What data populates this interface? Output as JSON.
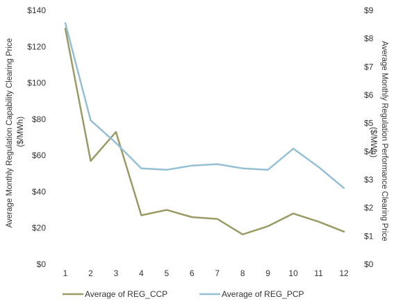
{
  "chart_data": {
    "type": "line",
    "categories": [
      "1",
      "2",
      "3",
      "4",
      "5",
      "6",
      "7",
      "8",
      "9",
      "10",
      "11",
      "12"
    ],
    "title": "",
    "xlabel": "",
    "y_left": {
      "label_line1": "Average Monthly Regulation Capability Clearing Price",
      "label_line2": "($/MWh)",
      "ticks": [
        "$0",
        "$20",
        "$40",
        "$60",
        "$80",
        "$100",
        "$120",
        "$140"
      ],
      "ylim": [
        0,
        140
      ]
    },
    "y_right": {
      "label_line1": "Average Monthly Regulation Performance Clearing Price",
      "label_line2": "($/MWh)",
      "ticks": [
        "$0",
        "$1",
        "$2",
        "$3",
        "$4",
        "$5",
        "$6",
        "$7",
        "$8",
        "$9"
      ],
      "ylim": [
        0,
        9
      ]
    },
    "series": [
      {
        "name": "Average of REG_CCP",
        "axis": "left",
        "color": "#9a9a66",
        "values": [
          130,
          57,
          73,
          27,
          30,
          26,
          25,
          16.5,
          21,
          28,
          23.5,
          18
        ]
      },
      {
        "name": "Average of REG_PCP",
        "axis": "right",
        "color": "#94bfd4",
        "values": [
          8.55,
          5.1,
          4.3,
          3.4,
          3.35,
          3.5,
          3.55,
          3.4,
          3.35,
          4.1,
          3.45,
          2.7
        ]
      }
    ],
    "grid": false,
    "legend_position": "bottom"
  }
}
